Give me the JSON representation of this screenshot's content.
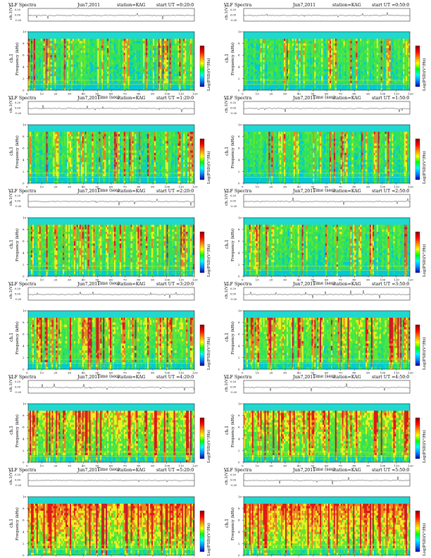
{
  "page": {
    "title": ""
  },
  "panel_text": {
    "title_left": "VLF Spectra",
    "x_axis_label": "Time (sec)",
    "y_axis_label_channel": "ch.1",
    "y_axis_label_freq": "Frequency (kHz)",
    "waveform_axis_label": "ch.1(V)",
    "waveform_ticks": [
      "0.20",
      "0.00",
      "-0.20"
    ],
    "freq_ticks": [
      "0",
      "2",
      "4",
      "6",
      "8",
      "10"
    ],
    "time_ticks": [
      "0",
      "10",
      "20",
      "30",
      "40",
      "50",
      "60",
      "70",
      "80",
      "90",
      "100",
      "110",
      "120"
    ],
    "colorbar_label": "Log(PSD)(V²/Hz)",
    "colorbar_ticks": [
      "-",
      "-"
    ]
  },
  "colors": {
    "background_band": "#20d8d0",
    "low": "#00c8d8",
    "mid_low": "#30e060",
    "mid": "#60e830",
    "mid_high": "#f0f020",
    "high": "#f08020",
    "peak": "#e01818",
    "colorbar": [
      "#8b0000",
      "#ff0000",
      "#ff8800",
      "#ffff00",
      "#00ff00",
      "#00ffff",
      "#0088ff",
      "#0000aa"
    ]
  },
  "chart_data": [
    {
      "type": "heatmap",
      "title_left": "VLF Spectra",
      "date": "Jun7,2011",
      "station": "station=KAG",
      "start": "start UT =0:20:0",
      "xlabel": "Time (sec)",
      "ylabel": "Frequency (kHz)",
      "xlim": [
        0,
        120
      ],
      "ylim": [
        0,
        10
      ],
      "intensity_level": 0.35
    },
    {
      "type": "heatmap",
      "title_left": "VLF Spectra",
      "date": "Jun7,2011",
      "station": "station=KAG",
      "start": "start UT =0:50:0",
      "xlabel": "Time (sec)",
      "ylabel": "Frequency (kHz)",
      "xlim": [
        0,
        120
      ],
      "ylim": [
        0,
        10
      ],
      "intensity_level": 0.35
    },
    {
      "type": "heatmap",
      "title_left": "VLF Spectra",
      "date": "Jun7,2011",
      "station": "station=KAG",
      "start": "start UT =1:20:0",
      "xlabel": "Time (sec)",
      "ylabel": "Frequency (kHz)",
      "xlim": [
        0,
        120
      ],
      "ylim": [
        0,
        10
      ],
      "intensity_level": 0.35
    },
    {
      "type": "heatmap",
      "title_left": "VLF Spectra",
      "date": "Jun7,2011",
      "station": "station=KAG",
      "start": "start UT =1:50:0",
      "xlabel": "Time (sec)",
      "ylabel": "Frequency (kHz)",
      "xlim": [
        0,
        120
      ],
      "ylim": [
        0,
        10
      ],
      "intensity_level": 0.35
    },
    {
      "type": "heatmap",
      "title_left": "VLF Spectra",
      "date": "Jun7,2011",
      "station": "station=KAG",
      "start": "start UT =2:20:0",
      "xlabel": "Time (sec)",
      "ylabel": "Frequency (kHz)",
      "xlim": [
        0,
        120
      ],
      "ylim": [
        0,
        10
      ],
      "intensity_level": 0.45
    },
    {
      "type": "heatmap",
      "title_left": "VLF Spectra",
      "date": "Jun7,2011",
      "station": "station=KAG",
      "start": "start UT =2:50:0",
      "xlabel": "Time (sec)",
      "ylabel": "Frequency (kHz)",
      "xlim": [
        0,
        120
      ],
      "ylim": [
        0,
        10
      ],
      "intensity_level": 0.4
    },
    {
      "type": "heatmap",
      "title_left": "VLF Spectra",
      "date": "Jun7,2011",
      "station": "station=KAG",
      "start": "start UT =3:20:0",
      "xlabel": "Time (sec)",
      "ylabel": "Frequency (kHz)",
      "xlim": [
        0,
        120
      ],
      "ylim": [
        0,
        10
      ],
      "intensity_level": 0.55
    },
    {
      "type": "heatmap",
      "title_left": "VLF Spectra",
      "date": "Jun7,2011",
      "station": "station=KAG",
      "start": "start UT =3:50:0",
      "xlabel": "Time (sec)",
      "ylabel": "Frequency (kHz)",
      "xlim": [
        0,
        120
      ],
      "ylim": [
        0,
        10
      ],
      "intensity_level": 0.55
    },
    {
      "type": "heatmap",
      "title_left": "VLF Spectra",
      "date": "Jun7,2011",
      "station": "station=KAG",
      "start": "start UT =4:20:0",
      "xlabel": "Time (sec)",
      "ylabel": "Frequency (kHz)",
      "xlim": [
        0,
        120
      ],
      "ylim": [
        0,
        10
      ],
      "intensity_level": 0.7
    },
    {
      "type": "heatmap",
      "title_left": "VLF Spectra",
      "date": "Jun7,2011",
      "station": "station=KAG",
      "start": "start UT =4:50:0",
      "xlabel": "Time (sec)",
      "ylabel": "Frequency (kHz)",
      "xlim": [
        0,
        120
      ],
      "ylim": [
        0,
        10
      ],
      "intensity_level": 0.7
    },
    {
      "type": "heatmap",
      "title_left": "VLF Spectra",
      "date": "Jun7,2011",
      "station": "station=KAG",
      "start": "start UT =5:20:0",
      "xlabel": "Time (sec)",
      "ylabel": "Frequency (kHz)",
      "xlim": [
        0,
        120
      ],
      "ylim": [
        0,
        10
      ],
      "intensity_level": 0.85
    },
    {
      "type": "heatmap",
      "title_left": "VLF Spectra",
      "date": "Jun7,2011",
      "station": "station=KAG",
      "start": "start UT =5:50:0",
      "xlabel": "Time (sec)",
      "ylabel": "Frequency (kHz)",
      "xlim": [
        0,
        120
      ],
      "ylim": [
        0,
        10
      ],
      "intensity_level": 0.85
    }
  ]
}
